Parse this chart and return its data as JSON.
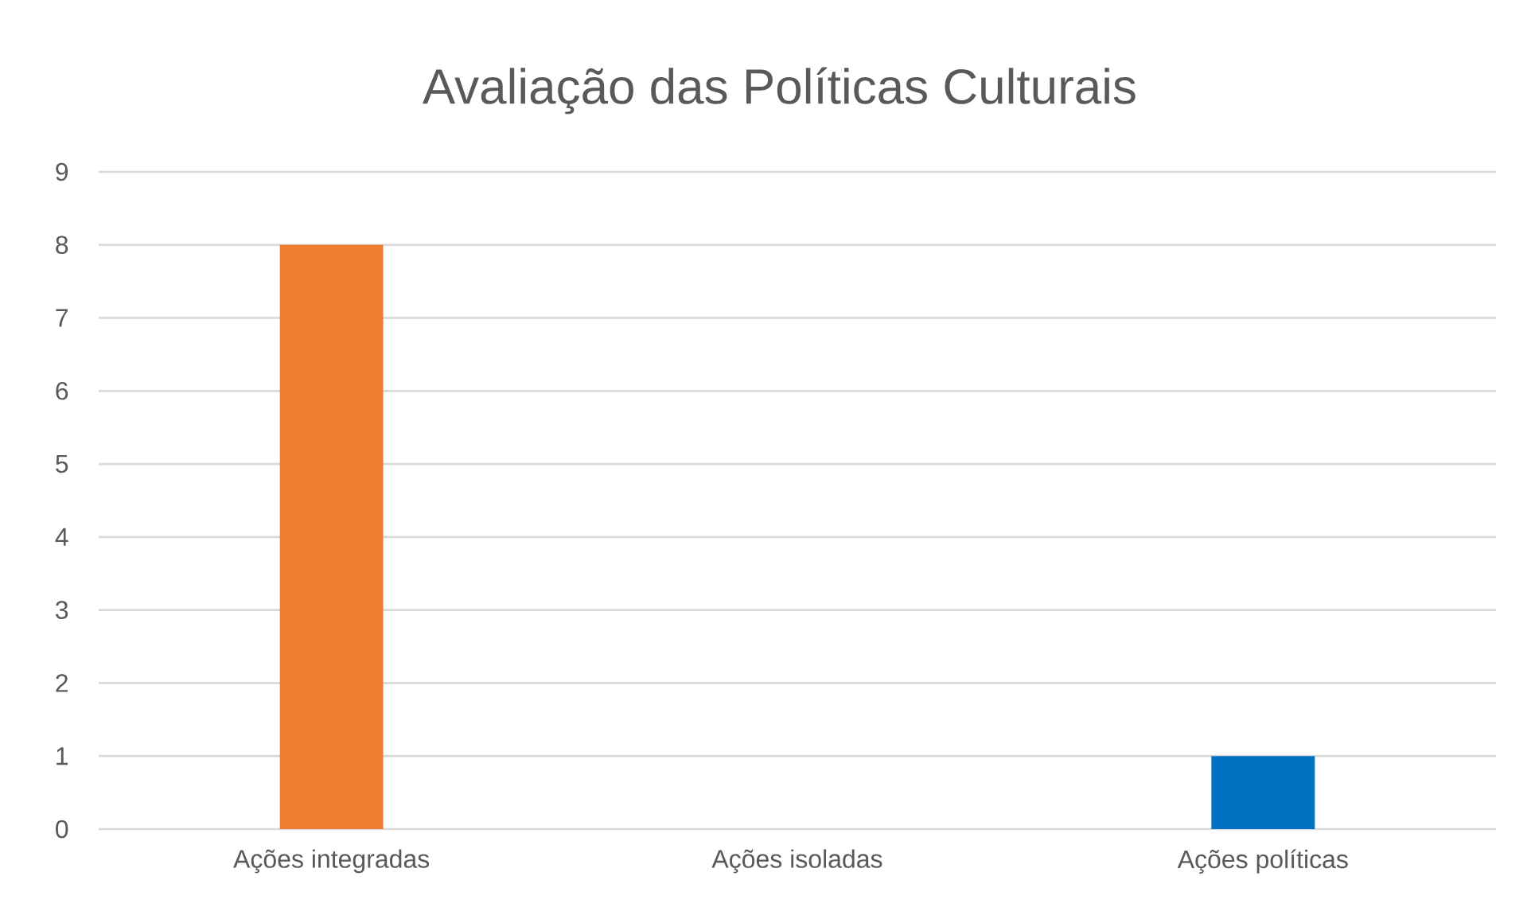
{
  "chart_data": {
    "type": "bar",
    "title": "Avaliação das Políticas Culturais",
    "categories": [
      "Ações integradas",
      "Ações isoladas",
      "Ações políticas"
    ],
    "values": [
      8,
      null,
      1
    ],
    "colors": [
      "#ed7d31",
      "#a5a5a5",
      "#0070c0"
    ],
    "ylim": [
      0,
      9
    ],
    "yticks": [
      0,
      1,
      2,
      3,
      4,
      5,
      6,
      7,
      8,
      9
    ],
    "grid": "y"
  }
}
